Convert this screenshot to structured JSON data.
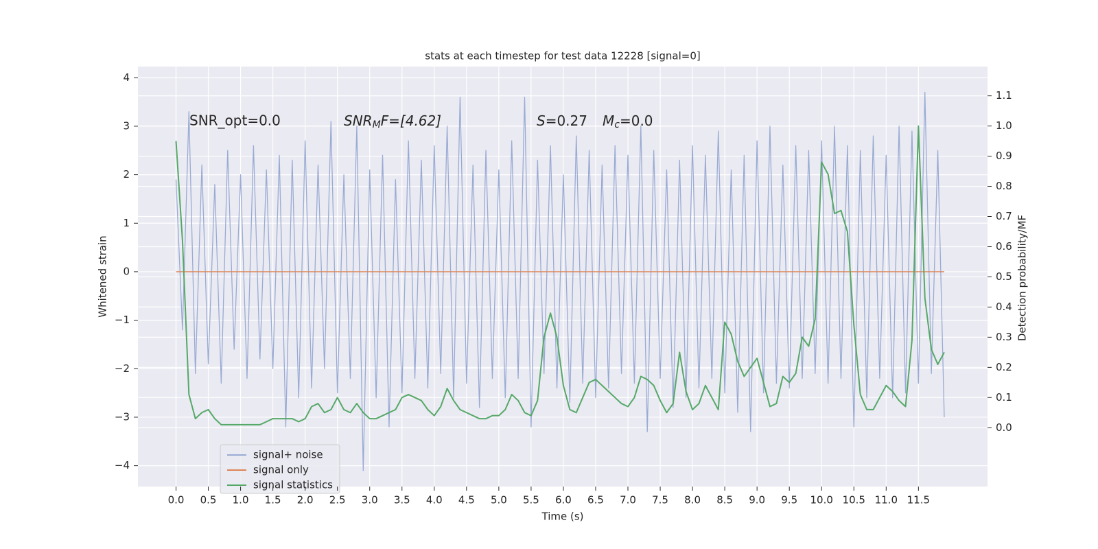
{
  "chart_data": {
    "type": "line",
    "title": "stats at each timestep for test data 12228 [signal=0]",
    "xlabel": "Time (s)",
    "ylabel": "Whitened strain",
    "y2label": "Detection probability/MF",
    "annotations": {
      "snr_opt": "SNR_opt=0.0",
      "snr_mf": [
        "SNR",
        "M",
        "F=[4.62]"
      ],
      "s": [
        "S",
        "=0.27"
      ],
      "mc": [
        "M",
        "c",
        "=0.0"
      ]
    },
    "grid": true,
    "legend": "lower left",
    "x": [
      0,
      0.1,
      0.2,
      0.3,
      0.4,
      0.5,
      0.6,
      0.7,
      0.8,
      0.9,
      1,
      1.1,
      1.2,
      1.3,
      1.4,
      1.5,
      1.6,
      1.7,
      1.8,
      1.9,
      2,
      2.1,
      2.2,
      2.3,
      2.4,
      2.5,
      2.6,
      2.7,
      2.8,
      2.9,
      3,
      3.1,
      3.2,
      3.3,
      3.4,
      3.5,
      3.6,
      3.7,
      3.8,
      3.9,
      4,
      4.1,
      4.2,
      4.3,
      4.4,
      4.5,
      4.6,
      4.7,
      4.8,
      4.9,
      5,
      5.1,
      5.2,
      5.3,
      5.4,
      5.5,
      5.6,
      5.7,
      5.8,
      5.9,
      6,
      6.1,
      6.2,
      6.3,
      6.4,
      6.5,
      6.6,
      6.7,
      6.8,
      6.9,
      7,
      7.1,
      7.2,
      7.3,
      7.4,
      7.5,
      7.6,
      7.7,
      7.8,
      7.9,
      8,
      8.1,
      8.2,
      8.3,
      8.4,
      8.5,
      8.6,
      8.7,
      8.8,
      8.9,
      9,
      9.1,
      9.2,
      9.3,
      9.4,
      9.5,
      9.6,
      9.7,
      9.8,
      9.9,
      10,
      10.1,
      10.2,
      10.3,
      10.4,
      10.5,
      10.6,
      10.7,
      10.8,
      10.9,
      11,
      11.1,
      11.2,
      11.3,
      11.4,
      11.5,
      11.6,
      11.7,
      11.8,
      11.9
    ],
    "series": [
      {
        "name": "signal+ noise",
        "color": "#9aabd3",
        "axis": "y",
        "values": [
          1.9,
          -1.2,
          3.3,
          -2.1,
          2.2,
          -1.9,
          1.8,
          -2.3,
          2.5,
          -1.6,
          2.0,
          -2.2,
          2.6,
          -1.8,
          2.1,
          -2.0,
          2.4,
          -3.2,
          2.3,
          -2.6,
          2.7,
          -2.4,
          2.2,
          -2.0,
          3.1,
          -2.5,
          2.0,
          -2.2,
          3.0,
          -4.1,
          2.1,
          -2.6,
          2.4,
          -3.2,
          1.9,
          -2.5,
          2.7,
          -2.2,
          2.3,
          -2.4,
          2.6,
          -2.1,
          3.0,
          -2.6,
          3.6,
          -2.3,
          2.2,
          -2.8,
          2.5,
          -2.2,
          2.1,
          -2.6,
          2.7,
          -2.2,
          3.6,
          -3.2,
          2.3,
          -2.1,
          2.6,
          -2.4,
          2.0,
          -2.7,
          2.8,
          -2.3,
          2.5,
          -2.6,
          2.2,
          -2.4,
          2.6,
          -2.1,
          2.4,
          -2.3,
          3.0,
          -3.3,
          2.5,
          -2.2,
          2.1,
          -2.8,
          2.3,
          -2.6,
          2.6,
          -2.4,
          2.4,
          -2.2,
          2.9,
          -2.5,
          2.1,
          -2.9,
          2.4,
          -3.3,
          2.7,
          -2.5,
          3.0,
          -2.3,
          2.2,
          -2.4,
          2.6,
          -2.2,
          2.5,
          -2.1,
          2.7,
          -2.3,
          3.0,
          -2.2,
          2.6,
          -3.2,
          2.5,
          -2.6,
          2.8,
          -2.2,
          2.4,
          -2.6,
          3.0,
          -2.5,
          2.9,
          -2.3,
          3.7,
          -2.1,
          2.5,
          -3.0
        ]
      },
      {
        "name": "signal only",
        "color": "#dd8452",
        "axis": "y",
        "values": [
          0,
          0,
          0,
          0,
          0,
          0,
          0,
          0,
          0,
          0,
          0,
          0,
          0,
          0,
          0,
          0,
          0,
          0,
          0,
          0,
          0,
          0,
          0,
          0,
          0,
          0,
          0,
          0,
          0,
          0,
          0,
          0,
          0,
          0,
          0,
          0,
          0,
          0,
          0,
          0,
          0,
          0,
          0,
          0,
          0,
          0,
          0,
          0,
          0,
          0,
          0,
          0,
          0,
          0,
          0,
          0,
          0,
          0,
          0,
          0,
          0,
          0,
          0,
          0,
          0,
          0,
          0,
          0,
          0,
          0,
          0,
          0,
          0,
          0,
          0,
          0,
          0,
          0,
          0,
          0,
          0,
          0,
          0,
          0,
          0,
          0,
          0,
          0,
          0,
          0,
          0,
          0,
          0,
          0,
          0,
          0,
          0,
          0,
          0,
          0,
          0,
          0,
          0,
          0,
          0,
          0,
          0,
          0,
          0,
          0,
          0,
          0,
          0,
          0,
          0,
          0,
          0,
          0,
          0,
          0
        ]
      },
      {
        "name": "signal statistics",
        "color": "#55a868",
        "axis": "y2",
        "values": [
          0.95,
          0.62,
          0.11,
          0.03,
          0.05,
          0.06,
          0.03,
          0.01,
          0.01,
          0.01,
          0.01,
          0.01,
          0.01,
          0.01,
          0.02,
          0.03,
          0.03,
          0.03,
          0.03,
          0.02,
          0.03,
          0.07,
          0.08,
          0.05,
          0.06,
          0.1,
          0.06,
          0.05,
          0.08,
          0.05,
          0.03,
          0.03,
          0.04,
          0.05,
          0.06,
          0.1,
          0.11,
          0.1,
          0.09,
          0.06,
          0.04,
          0.07,
          0.13,
          0.09,
          0.06,
          0.05,
          0.04,
          0.03,
          0.03,
          0.04,
          0.04,
          0.06,
          0.11,
          0.09,
          0.05,
          0.04,
          0.09,
          0.3,
          0.38,
          0.3,
          0.14,
          0.06,
          0.05,
          0.1,
          0.15,
          0.16,
          0.14,
          0.12,
          0.1,
          0.08,
          0.07,
          0.1,
          0.17,
          0.16,
          0.14,
          0.09,
          0.05,
          0.08,
          0.25,
          0.12,
          0.06,
          0.08,
          0.14,
          0.1,
          0.06,
          0.35,
          0.31,
          0.22,
          0.17,
          0.2,
          0.23,
          0.15,
          0.07,
          0.08,
          0.17,
          0.15,
          0.18,
          0.3,
          0.27,
          0.36,
          0.88,
          0.84,
          0.71,
          0.72,
          0.65,
          0.34,
          0.11,
          0.06,
          0.06,
          0.1,
          0.14,
          0.12,
          0.09,
          0.07,
          0.29,
          1.0,
          0.43,
          0.26,
          0.21,
          0.25
        ]
      }
    ],
    "xlim": [
      -0.59,
      12.57
    ],
    "xticks": [
      {
        "value": 0,
        "label": "0.0"
      },
      {
        "value": 0.5,
        "label": "0.5"
      },
      {
        "value": 1,
        "label": "1.0"
      },
      {
        "value": 1.5,
        "label": "1.5"
      },
      {
        "value": 2,
        "label": "2.0"
      },
      {
        "value": 2.5,
        "label": "2.5"
      },
      {
        "value": 3,
        "label": "3.0"
      },
      {
        "value": 3.5,
        "label": "3.5"
      },
      {
        "value": 4,
        "label": "4.0"
      },
      {
        "value": 4.5,
        "label": "4.5"
      },
      {
        "value": 5,
        "label": "5.0"
      },
      {
        "value": 5.5,
        "label": "5.5"
      },
      {
        "value": 6,
        "label": "6.0"
      },
      {
        "value": 6.5,
        "label": "6.5"
      },
      {
        "value": 7,
        "label": "7.0"
      },
      {
        "value": 7.5,
        "label": "7.5"
      },
      {
        "value": 8,
        "label": "8.0"
      },
      {
        "value": 8.5,
        "label": "8.5"
      },
      {
        "value": 9,
        "label": "9.0"
      },
      {
        "value": 9.5,
        "label": "9.5"
      },
      {
        "value": 10,
        "label": "10.0"
      },
      {
        "value": 10.5,
        "label": "10.5"
      },
      {
        "value": 11,
        "label": "11.0"
      },
      {
        "value": 11.5,
        "label": "11.5"
      }
    ],
    "ylim": [
      -4.43,
      4.23
    ],
    "yticks": [
      {
        "value": -4,
        "label": "−4"
      },
      {
        "value": -3,
        "label": "−3"
      },
      {
        "value": -2,
        "label": "−2"
      },
      {
        "value": -1,
        "label": "−1"
      },
      0,
      1,
      2,
      3,
      4
    ],
    "y2lim": [
      -0.195,
      1.197
    ],
    "y2ticks": [
      {
        "value": 0,
        "label": "0.0"
      },
      {
        "value": 0.1,
        "label": "0.1"
      },
      {
        "value": 0.2,
        "label": "0.2"
      },
      {
        "value": 0.3,
        "label": "0.3"
      },
      {
        "value": 0.4,
        "label": "0.4"
      },
      {
        "value": 0.5,
        "label": "0.5"
      },
      {
        "value": 0.6,
        "label": "0.6"
      },
      {
        "value": 0.7,
        "label": "0.7"
      },
      {
        "value": 0.8,
        "label": "0.8"
      },
      {
        "value": 0.9,
        "label": "0.9"
      },
      {
        "value": 1,
        "label": "1.0"
      },
      {
        "value": 1.1,
        "label": "1.1"
      }
    ]
  }
}
